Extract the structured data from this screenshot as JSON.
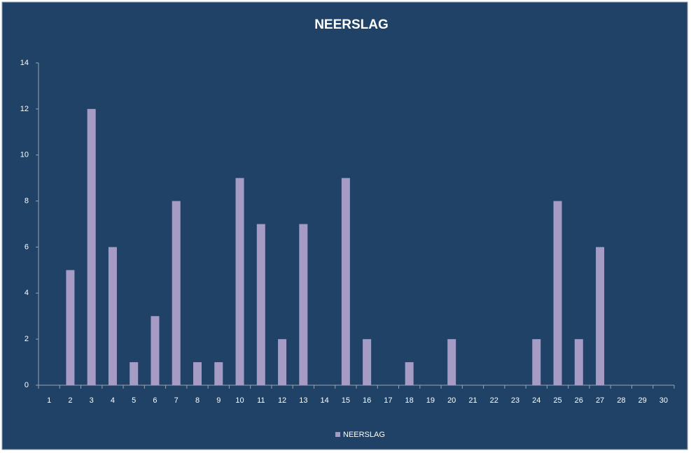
{
  "chart_data": {
    "type": "bar",
    "title": "NEERSLAG",
    "categories": [
      "1",
      "2",
      "3",
      "4",
      "5",
      "6",
      "7",
      "8",
      "9",
      "10",
      "11",
      "12",
      "13",
      "14",
      "15",
      "16",
      "17",
      "18",
      "19",
      "20",
      "21",
      "22",
      "23",
      "24",
      "25",
      "26",
      "27",
      "28",
      "29",
      "30"
    ],
    "series": [
      {
        "name": "NEERSLAG",
        "color": "#a59bc4",
        "values": [
          0,
          5,
          12,
          6,
          1,
          3,
          8,
          1,
          1,
          9,
          7,
          2,
          7,
          0,
          9,
          2,
          0,
          1,
          0,
          2,
          0,
          0,
          0,
          2,
          8,
          2,
          6,
          0,
          0,
          0
        ]
      }
    ],
    "ylim": [
      0,
      14
    ],
    "yticks": [
      0,
      2,
      4,
      6,
      8,
      10,
      12,
      14
    ],
    "grid": false,
    "legend": "bottom"
  }
}
